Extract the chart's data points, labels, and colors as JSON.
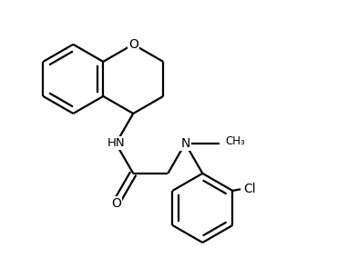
{
  "background_color": "#ffffff",
  "line_color": "#000000",
  "line_width": 1.6,
  "fig_width": 3.93,
  "fig_height": 3.06,
  "dpi": 100,
  "xlim": [
    0,
    9.5
  ],
  "ylim": [
    0,
    7.5
  ]
}
